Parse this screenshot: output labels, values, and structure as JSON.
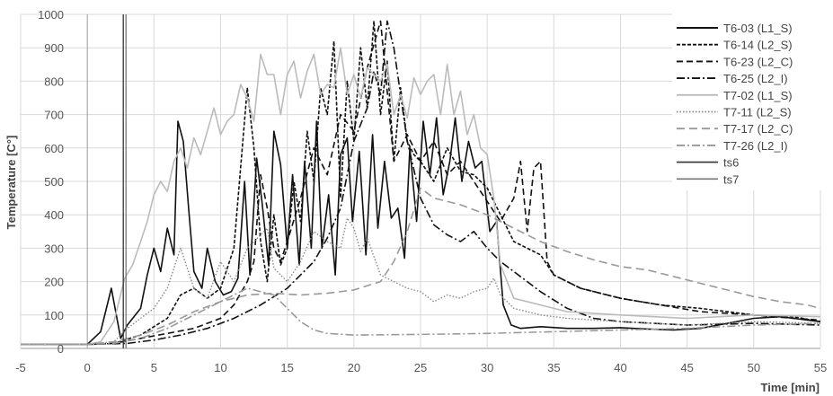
{
  "chart_data": {
    "type": "line",
    "title": "",
    "xlabel": "Time [min]",
    "ylabel": "Temperature [C°]",
    "xlim": [
      -5,
      55
    ],
    "ylim": [
      0,
      1000
    ],
    "xticks": [
      -5,
      0,
      5,
      10,
      15,
      20,
      25,
      30,
      35,
      40,
      45,
      50,
      55
    ],
    "yticks": [
      0,
      100,
      200,
      300,
      400,
      500,
      600,
      700,
      800,
      900,
      1000
    ],
    "grid": true,
    "legend_position": "top-right",
    "series": [
      {
        "name": "T6-03 (L1_S)",
        "color": "#111111",
        "width": 1.6,
        "dash": "",
        "x": [
          -5,
          0,
          1,
          1.8,
          2.5,
          3,
          4,
          4.5,
          5,
          5.5,
          6,
          6.5,
          6.8,
          7.2,
          7.6,
          8,
          8.6,
          9,
          9.6,
          10.2,
          10.8,
          11.3,
          11.8,
          12.2,
          12.7,
          13.1,
          13.6,
          14,
          14.5,
          15,
          15.4,
          15.9,
          16.3,
          16.8,
          17.2,
          17.6,
          18.1,
          18.6,
          19,
          19.5,
          19.9,
          20.4,
          20.9,
          21.4,
          21.8,
          22.3,
          22.8,
          23.3,
          23.8,
          24.2,
          24.7,
          25.2,
          25.7,
          26.2,
          26.7,
          27.2,
          27.6,
          28.1,
          28.6,
          29.1,
          29.6,
          30.2,
          30.7,
          31.2,
          31.8,
          32.5,
          34,
          36,
          38,
          40,
          42,
          44,
          46,
          48,
          50,
          52,
          54,
          55
        ],
        "y": [
          12,
          12,
          50,
          180,
          30,
          70,
          120,
          220,
          300,
          230,
          360,
          280,
          680,
          620,
          420,
          230,
          180,
          300,
          200,
          160,
          170,
          210,
          500,
          220,
          570,
          440,
          250,
          650,
          550,
          300,
          520,
          250,
          560,
          300,
          680,
          300,
          460,
          220,
          580,
          630,
          380,
          590,
          280,
          640,
          360,
          560,
          390,
          420,
          270,
          600,
          380,
          680,
          520,
          690,
          460,
          560,
          690,
          500,
          620,
          540,
          560,
          350,
          380,
          130,
          70,
          60,
          65,
          60,
          60,
          62,
          58,
          55,
          60,
          75,
          90,
          95,
          85,
          80
        ]
      },
      {
        "name": "T6-14 (L2_S)",
        "color": "#111111",
        "width": 1.6,
        "dash": "4 2",
        "x": [
          -5,
          0,
          2,
          4,
          6,
          7,
          8,
          9,
          10,
          11,
          12,
          12.5,
          13,
          13.5,
          14,
          14.5,
          15,
          15.5,
          16,
          16.5,
          17,
          17.5,
          18,
          18.5,
          19,
          19.5,
          20,
          20.5,
          21,
          21.5,
          22,
          22.5,
          23,
          23.5,
          24,
          24.5,
          25,
          26,
          27,
          28,
          29,
          30,
          31,
          32,
          33,
          34,
          35,
          37,
          40,
          43,
          46,
          50,
          53,
          55
        ],
        "y": [
          12,
          12,
          15,
          40,
          90,
          160,
          180,
          150,
          180,
          300,
          780,
          600,
          320,
          200,
          400,
          250,
          300,
          500,
          380,
          650,
          500,
          780,
          700,
          920,
          450,
          800,
          620,
          900,
          720,
          980,
          700,
          860,
          560,
          780,
          620,
          580,
          560,
          500,
          600,
          530,
          520,
          480,
          400,
          320,
          300,
          280,
          220,
          180,
          150,
          130,
          120,
          100,
          95,
          80
        ]
      },
      {
        "name": "T6-23 (L2_C)",
        "color": "#111111",
        "width": 1.6,
        "dash": "7 4",
        "x": [
          -5,
          0,
          2,
          4,
          6,
          8,
          10,
          11,
          12,
          12.5,
          13,
          13.5,
          14,
          14.5,
          15,
          16,
          17,
          18,
          19,
          20,
          21,
          22,
          23,
          24,
          25,
          26,
          27,
          28,
          29,
          30,
          31,
          32,
          32.5,
          33,
          33.5,
          34,
          34.5,
          35,
          37,
          40,
          43,
          46,
          50,
          53,
          55
        ],
        "y": [
          12,
          12,
          15,
          30,
          45,
          60,
          90,
          130,
          200,
          260,
          520,
          420,
          300,
          260,
          320,
          450,
          600,
          520,
          700,
          650,
          840,
          980,
          560,
          640,
          560,
          620,
          520,
          560,
          500,
          440,
          380,
          450,
          560,
          350,
          540,
          560,
          260,
          220,
          180,
          150,
          130,
          110,
          100,
          90,
          85
        ]
      },
      {
        "name": "T6-25 (L2_I)",
        "color": "#111111",
        "width": 1.6,
        "dash": "9 3 2 3",
        "x": [
          -5,
          0,
          3,
          5,
          7,
          9,
          11,
          13,
          15,
          17,
          18,
          19,
          20,
          21,
          21.5,
          22,
          22.5,
          23,
          24,
          25,
          26,
          27,
          28,
          29,
          30,
          31,
          32,
          34,
          36,
          38,
          40,
          45,
          50,
          55
        ],
        "y": [
          12,
          12,
          15,
          25,
          40,
          60,
          90,
          130,
          180,
          260,
          330,
          420,
          620,
          720,
          830,
          760,
          980,
          900,
          620,
          450,
          370,
          340,
          320,
          350,
          300,
          260,
          230,
          170,
          120,
          90,
          80,
          70,
          75,
          70
        ]
      },
      {
        "name": "T7-02 (L1_S)",
        "color": "#bbbbbb",
        "width": 1.6,
        "dash": "",
        "x": [
          -5,
          0,
          1,
          2,
          2.8,
          3.4,
          4,
          4.5,
          5,
          5.5,
          6,
          6.5,
          7,
          7.5,
          8,
          8.5,
          9,
          9.5,
          10,
          10.5,
          11,
          11.5,
          12,
          12.5,
          13,
          13.5,
          14,
          14.5,
          15,
          15.5,
          16,
          16.5,
          17,
          17.5,
          18,
          18.5,
          19,
          19.5,
          20,
          20.5,
          21,
          21.5,
          22,
          22.5,
          23,
          23.5,
          24,
          24.5,
          25,
          25.5,
          26,
          26.5,
          27,
          27.5,
          28,
          28.5,
          29,
          29.5,
          30,
          30.5,
          31,
          32,
          34,
          36,
          40,
          45,
          50,
          55
        ],
        "y": [
          12,
          12,
          20,
          80,
          210,
          250,
          320,
          380,
          460,
          500,
          470,
          560,
          600,
          540,
          630,
          580,
          650,
          720,
          640,
          680,
          700,
          790,
          750,
          680,
          880,
          820,
          820,
          700,
          820,
          860,
          750,
          830,
          880,
          760,
          790,
          780,
          900,
          760,
          820,
          750,
          840,
          820,
          800,
          850,
          700,
          760,
          690,
          810,
          760,
          800,
          820,
          700,
          850,
          700,
          770,
          640,
          700,
          600,
          580,
          450,
          250,
          150,
          130,
          110,
          100,
          90,
          100,
          95
        ]
      },
      {
        "name": "T7-11 (L2_S)",
        "color": "#888888",
        "width": 1.4,
        "dash": "1.5 2",
        "x": [
          -5,
          0,
          2,
          3,
          4,
          5,
          6,
          7,
          8,
          9,
          10,
          11,
          12,
          13,
          13.5,
          14,
          15,
          16,
          17,
          18,
          19,
          19.5,
          20,
          20.5,
          21,
          22,
          23,
          24,
          25,
          26,
          27,
          28,
          29,
          30,
          30.5,
          31,
          32,
          34,
          36,
          40,
          45,
          50,
          55
        ],
        "y": [
          12,
          12,
          20,
          60,
          90,
          120,
          180,
          300,
          180,
          150,
          260,
          200,
          300,
          340,
          360,
          240,
          200,
          260,
          350,
          320,
          300,
          390,
          360,
          290,
          330,
          220,
          200,
          180,
          170,
          140,
          160,
          150,
          170,
          180,
          210,
          160,
          120,
          100,
          90,
          80,
          70,
          80,
          75
        ]
      },
      {
        "name": "T7-17 (L2_C)",
        "color": "#999999",
        "width": 1.6,
        "dash": "9 5",
        "x": [
          -5,
          0,
          2,
          4,
          6,
          8,
          10,
          12,
          14,
          16,
          18,
          20,
          22,
          23,
          24,
          25,
          26,
          28,
          30,
          32,
          34,
          36,
          38,
          40,
          42,
          44,
          46,
          48,
          50,
          52,
          54,
          55
        ],
        "y": [
          12,
          12,
          20,
          40,
          70,
          110,
          140,
          160,
          165,
          160,
          165,
          175,
          200,
          260,
          350,
          480,
          450,
          430,
          400,
          360,
          320,
          290,
          265,
          245,
          235,
          215,
          195,
          175,
          155,
          140,
          130,
          120
        ]
      },
      {
        "name": "T7-26 (L2_I)",
        "color": "#999999",
        "width": 1.6,
        "dash": "9 3 2 3",
        "x": [
          -5,
          0,
          2,
          4,
          6,
          8,
          10,
          12,
          14,
          15,
          16,
          17,
          18,
          20,
          25,
          30,
          35,
          40,
          45,
          50,
          55
        ],
        "y": [
          12,
          12,
          15,
          30,
          60,
          100,
          140,
          180,
          160,
          120,
          80,
          55,
          45,
          40,
          42,
          45,
          50,
          55,
          60,
          70,
          75
        ]
      },
      {
        "name": "ts6",
        "color": "#333333",
        "width": 1.3,
        "dash": "",
        "x": [
          2.7,
          2.7
        ],
        "y": [
          0,
          1000
        ]
      },
      {
        "name": "ts7",
        "color": "#777777",
        "width": 1.3,
        "dash": "",
        "x": [
          2.9,
          2.9
        ],
        "y": [
          0,
          1000
        ]
      }
    ]
  }
}
